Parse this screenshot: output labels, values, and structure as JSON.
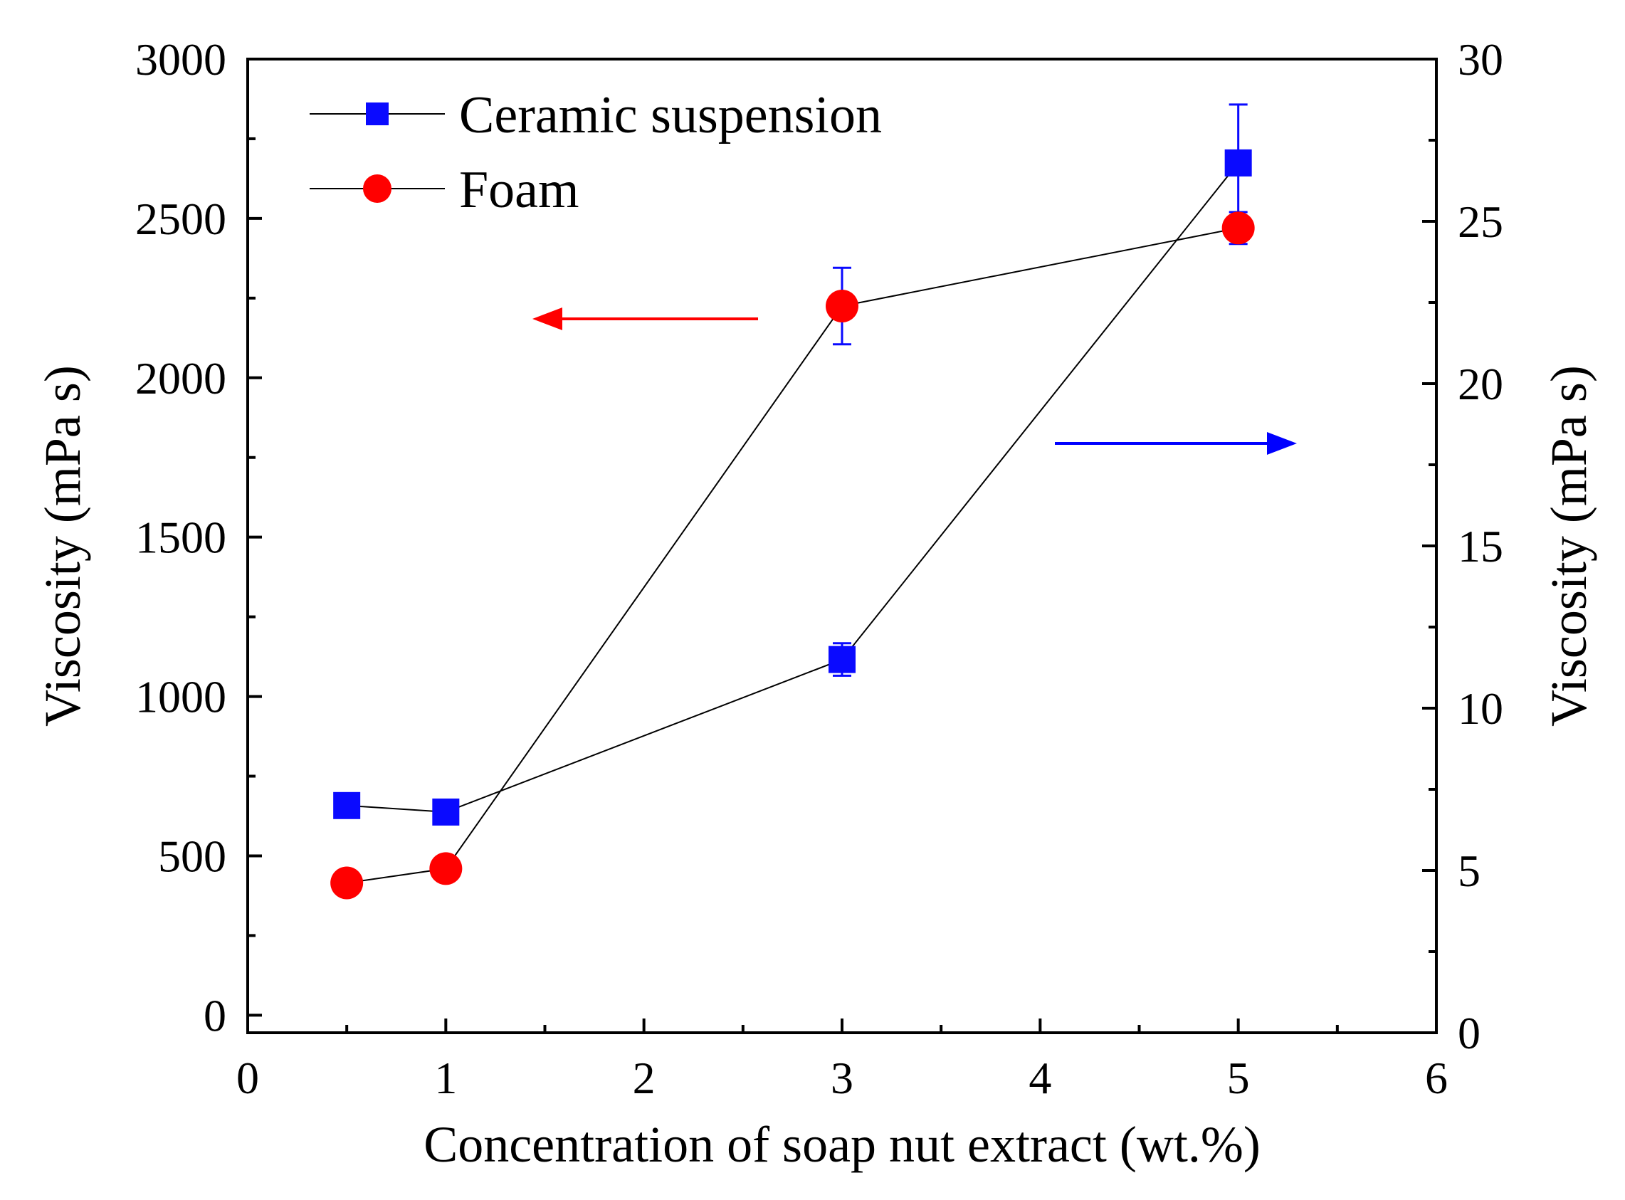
{
  "chart_data": {
    "type": "line",
    "xlabel": "Concentration of soap nut extract (wt.%)",
    "ylabel_left": "Viscosity (mPa s)",
    "ylabel_right": "Viscosity (mPa s)",
    "xlim": [
      0,
      6
    ],
    "xticks": [
      "0",
      "1",
      "2",
      "3",
      "4",
      "5",
      "6"
    ],
    "ylim_left": [
      -55,
      3000
    ],
    "yticks_left": [
      "0",
      "500",
      "1000",
      "1500",
      "2000",
      "2500",
      "3000"
    ],
    "ylim_right": [
      0,
      30
    ],
    "yticks_right": [
      "0",
      "5",
      "10",
      "15",
      "20",
      "25",
      "30"
    ],
    "legend": {
      "position": "top-left",
      "entries": [
        "Ceramic suspension",
        "Foam"
      ]
    },
    "series": [
      {
        "name": "Ceramic suspension",
        "axis": "right",
        "marker": "square",
        "color": "#0a0aff",
        "x": [
          0.5,
          1,
          3,
          5
        ],
        "y": [
          7.0,
          6.8,
          11.5,
          26.8
        ],
        "err": [
          0.3,
          0.3,
          0.5,
          1.8
        ]
      },
      {
        "name": "Foam",
        "axis": "left",
        "marker": "circle",
        "color": "#ff0000",
        "x": [
          0.5,
          1,
          3,
          5
        ],
        "y": [
          415,
          460,
          2225,
          2470
        ],
        "err": [
          30,
          25,
          120,
          50
        ]
      }
    ],
    "annotations": [
      {
        "type": "arrow",
        "meaning": "Foam series uses left axis",
        "color": "#ff0000",
        "direction": "left"
      },
      {
        "type": "arrow",
        "meaning": "Ceramic suspension series uses right axis",
        "color": "#0000ff",
        "direction": "right"
      }
    ]
  }
}
